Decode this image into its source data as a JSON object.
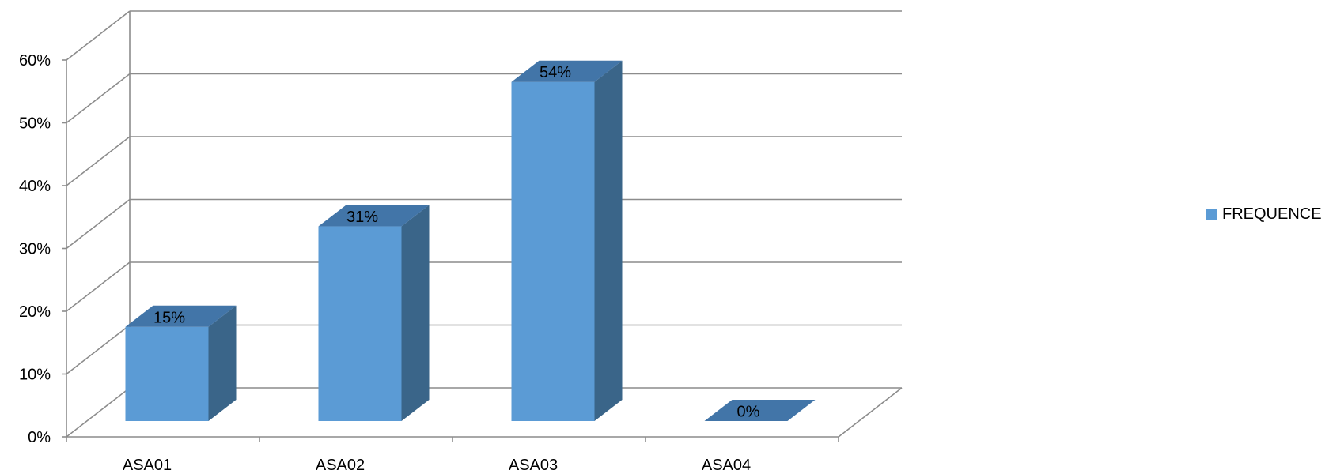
{
  "chart_data": {
    "type": "bar",
    "style": "3d-column",
    "categories": [
      "ASA01",
      "ASA02",
      "ASA03",
      "ASA04"
    ],
    "series": [
      {
        "name": "FREQUENCE",
        "values": [
          15,
          31,
          54,
          0
        ]
      }
    ],
    "data_labels": [
      "15%",
      "31%",
      "54%",
      "0%"
    ],
    "y_ticks": [
      "0%",
      "10%",
      "20%",
      "30%",
      "40%",
      "50%",
      "60%"
    ],
    "ylim": [
      0,
      60
    ],
    "grid": true,
    "legend_position": "right"
  },
  "colors": {
    "bar_front": "#5B9BD5",
    "bar_top": "#4275A8",
    "bar_side": "#3A6589",
    "grid": "#8C8C8C"
  }
}
